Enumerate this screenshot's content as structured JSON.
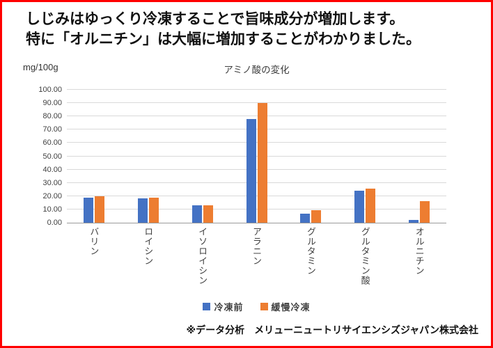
{
  "page": {
    "headline_line1": "しじみはゆっくり冷凍することで旨味成分が増加します。",
    "headline_line2": "特に「オルニチン」は大幅に増加することがわかりました。",
    "footer_note": "※データ分析　メリューニュートリサイエンシズジャパン株式会社",
    "frame_border_color": "#ff0000"
  },
  "chart_data": {
    "type": "bar",
    "title": "アミノ酸の変化",
    "ylabel": "mg/100g",
    "xlabel": "",
    "categories": [
      "バリン",
      "ロイシン",
      "イソロイシン",
      "アラニン",
      "グルタミン",
      "グルタミン酸",
      "オルニチン"
    ],
    "series": [
      {
        "name": "冷凍前",
        "color": "#4472C4",
        "values": [
          19,
          18.5,
          13,
          78,
          7,
          24,
          2
        ]
      },
      {
        "name": "緩慢冷凍",
        "color": "#ED7D31",
        "values": [
          20,
          19,
          13,
          90,
          9.5,
          25.5,
          16.5
        ]
      }
    ],
    "ylim": [
      0,
      100
    ],
    "ytick_step": 10,
    "ytick_decimals": 2,
    "grid": true,
    "gridline_color": "#d9d9d9",
    "legend_position": "bottom"
  }
}
